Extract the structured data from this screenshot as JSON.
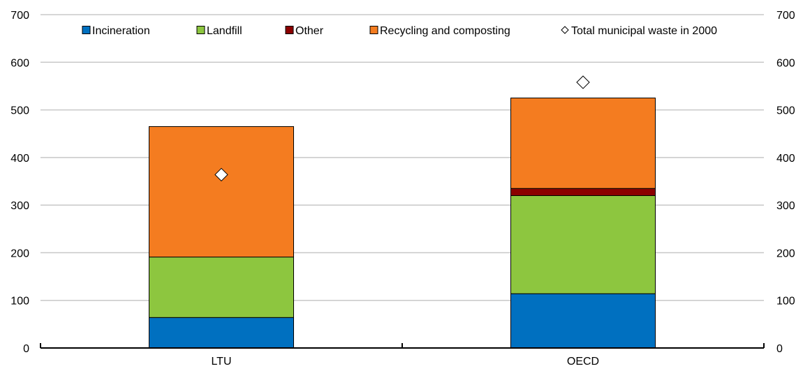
{
  "chart_data": {
    "type": "bar",
    "stacked": true,
    "categories": [
      "LTU",
      "OECD"
    ],
    "series": [
      {
        "name": "Incineration",
        "values": [
          64,
          114
        ],
        "color": "#0070C0"
      },
      {
        "name": "Landfill",
        "values": [
          127,
          206
        ],
        "color": "#8DC63F"
      },
      {
        "name": "Other",
        "values": [
          0,
          15
        ],
        "color": "#8B0000"
      },
      {
        "name": "Recycling and composting",
        "values": [
          274,
          190
        ],
        "color": "#F47C20"
      }
    ],
    "markers": {
      "name": "Total municipal waste in 2000",
      "shape": "diamond",
      "values": [
        364,
        558
      ]
    },
    "ylim": [
      0,
      700
    ],
    "yticks": [
      0,
      100,
      200,
      300,
      400,
      500,
      600,
      700
    ],
    "y_axis_sides": [
      "left",
      "right"
    ],
    "grid": true,
    "legend_position": "top"
  }
}
